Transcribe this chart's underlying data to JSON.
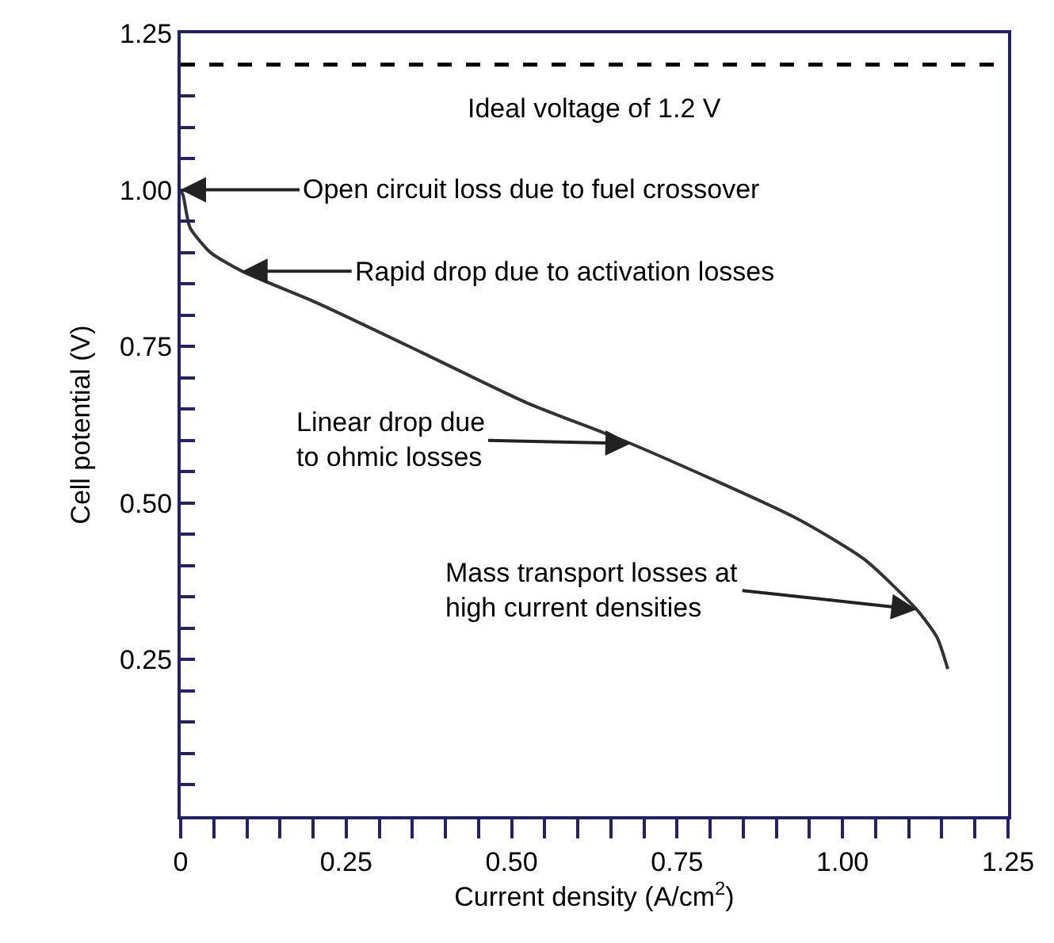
{
  "chart_data": {
    "type": "line",
    "xlabel": "Current density (A/cm$^{2}$)",
    "ylabel": "Cell potential (V)",
    "x": [
      0,
      0.004,
      0.014,
      0.045,
      0.093,
      0.205,
      0.365,
      0.523,
      0.68,
      0.928,
      1.033,
      1.112,
      1.143,
      1.159
    ],
    "series": [
      {
        "color": "#333333",
        "values": [
          1.0,
          0.99,
          0.94,
          0.9,
          0.87,
          0.82,
          0.74,
          0.66,
          0.595,
          0.477,
          0.41,
          0.33,
          0.285,
          0.235
        ]
      }
    ],
    "xlim": [
      0,
      1.25
    ],
    "ylim": [
      0,
      1.25
    ],
    "xticks": [
      0,
      {
        "value": 0.05,
        "label": null
      },
      {
        "value": 0.1,
        "label": null
      },
      {
        "value": 0.15,
        "label": null
      },
      {
        "value": 0.2,
        "label": null
      },
      0.25,
      {
        "value": 0.3,
        "label": null
      },
      {
        "value": 0.35,
        "label": null
      },
      {
        "value": 0.4,
        "label": null
      },
      {
        "value": 0.45,
        "label": null
      },
      {
        "value": 0.5,
        "label": "0.50"
      },
      {
        "value": 0.55,
        "label": null
      },
      {
        "value": 0.6,
        "label": null
      },
      {
        "value": 0.65,
        "label": null
      },
      {
        "value": 0.7,
        "label": null
      },
      0.75,
      {
        "value": 0.8,
        "label": null
      },
      {
        "value": 0.85,
        "label": null
      },
      {
        "value": 0.9,
        "label": null
      },
      {
        "value": 0.95,
        "label": null
      },
      {
        "value": 1.0,
        "label": "1.00"
      },
      {
        "value": 1.05,
        "label": null
      },
      {
        "value": 1.1,
        "label": null
      },
      {
        "value": 1.15,
        "label": null
      },
      {
        "value": 1.2,
        "label": null
      },
      1.25
    ],
    "yticks": [
      {
        "value": 0.05,
        "label": null
      },
      {
        "value": 0.1,
        "label": null
      },
      {
        "value": 0.15,
        "label": null
      },
      {
        "value": 0.2,
        "label": null
      },
      0.25,
      {
        "value": 0.3,
        "label": null
      },
      {
        "value": 0.35,
        "label": null
      },
      {
        "value": 0.4,
        "label": null
      },
      {
        "value": 0.45,
        "label": null
      },
      {
        "value": 0.5,
        "label": "0.50"
      },
      {
        "value": 0.55,
        "label": null
      },
      {
        "value": 0.6,
        "label": null
      },
      {
        "value": 0.65,
        "label": null
      },
      {
        "value": 0.7,
        "label": null
      },
      0.75,
      {
        "value": 0.8,
        "label": null
      },
      {
        "value": 0.85,
        "label": null
      },
      {
        "value": 0.9,
        "label": null
      },
      {
        "value": 0.95,
        "label": null
      },
      {
        "value": 1.0,
        "label": "1.00"
      },
      {
        "value": 1.05,
        "label": null
      },
      {
        "value": 1.1,
        "label": null
      },
      {
        "value": 1.15,
        "label": null
      },
      {
        "value": 1.2,
        "label": null
      },
      1.25
    ],
    "ref_lines": [
      {
        "axis": "y",
        "value": 1.2,
        "label": "Ideal voltage of 1.2 V",
        "color": "#000000",
        "line_style": "dashed"
      }
    ],
    "annotations": [
      {
        "text": "Open circuit loss due to fuel crossover",
        "x": 0,
        "y": 1.0
      },
      {
        "text": "Rapid drop due to activation losses",
        "x": 0.093,
        "y": 0.87
      },
      {
        "text": "Linear drop due\nto ohmic losses",
        "x": 0.68,
        "y": 0.595
      },
      {
        "text": "Mass transport losses at\nhigh current densities",
        "x": 1.112,
        "y": 0.33
      }
    ],
    "grid": false,
    "marker": "none",
    "line_style": "solid"
  }
}
